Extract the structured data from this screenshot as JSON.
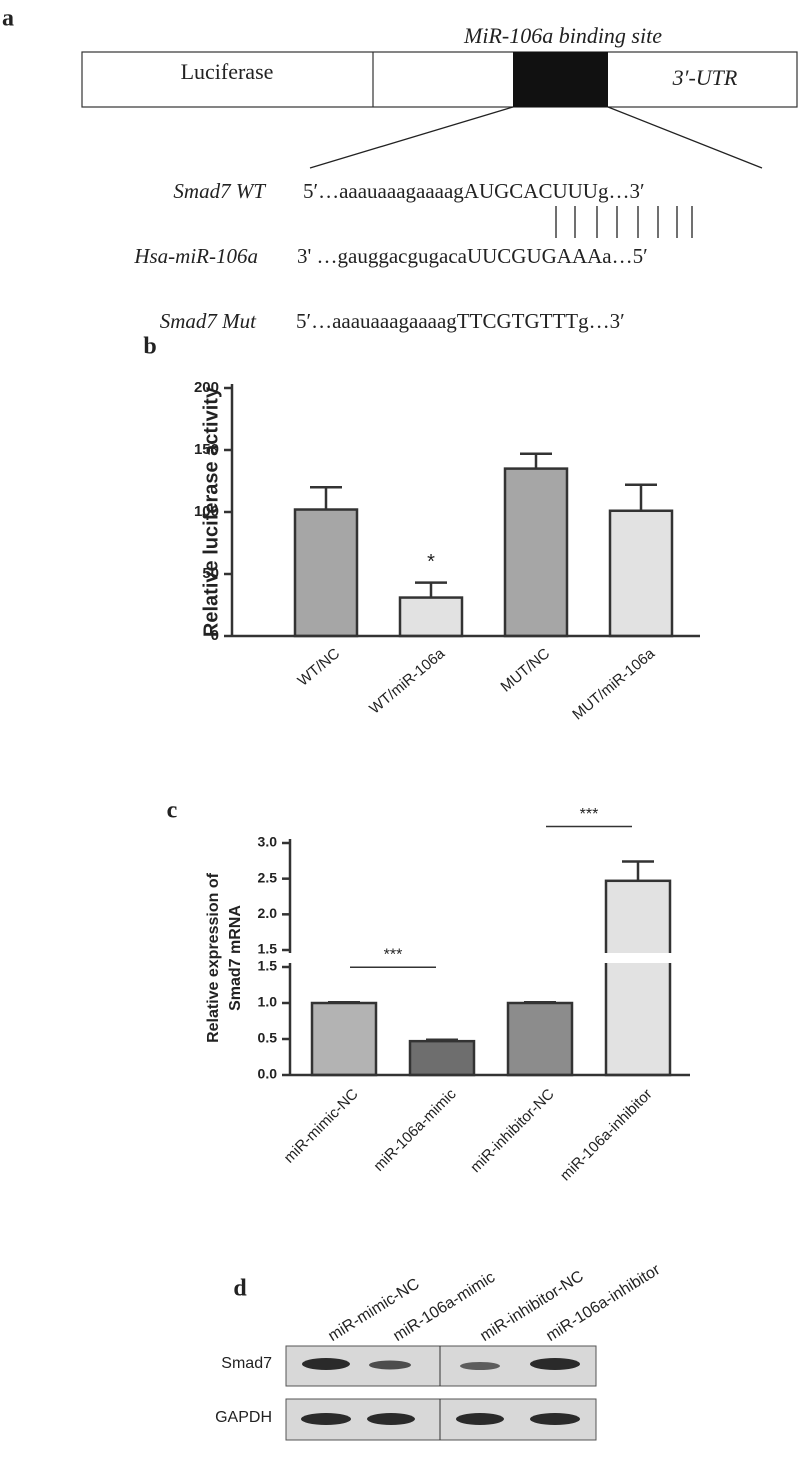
{
  "panel_a": {
    "label": "a",
    "luciferase": "Luciferase",
    "binding_site": "MiR-106a binding site",
    "utr": "3′-UTR",
    "rows": [
      {
        "name": "Smad7 WT",
        "sequence": "5′…aaauaaagaaaagAUGCACUUUg…3′"
      },
      {
        "name": "Hsa-miR-106a",
        "sequence": "3' …gauggacgugacaUUCGUGAAAa…5′"
      },
      {
        "name": "Smad7 Mut",
        "sequence": "5′…aaauaaagaaaagTTCGTGTTTg…3′"
      }
    ]
  },
  "chart_data": [
    {
      "type": "bar",
      "label": "b",
      "ylabel": [
        "Relative luciferase activity"
      ],
      "categories": [
        "WT/NC",
        "WT/miR-106a",
        "MUT/NC",
        "MUT/miR-106a"
      ],
      "values": [
        102,
        31,
        135,
        101
      ],
      "errors": [
        18,
        12,
        12,
        21
      ],
      "colors": [
        "#a6a6a6",
        "#e2e2e2",
        "#a6a6a6",
        "#e2e2e2"
      ],
      "ylim": [
        0,
        200
      ],
      "yticks": [
        0,
        50,
        100,
        150,
        200
      ],
      "annotations": [
        {
          "text": "*",
          "categories": [
            "WT/miR-106a"
          ]
        }
      ]
    },
    {
      "type": "bar",
      "label": "c",
      "ylabel": [
        "Relative expression of",
        "Smad7 mRNA"
      ],
      "categories": [
        "miR-mimic-NC",
        "miR-106a-mimic",
        "miR-inhibitor-NC",
        "miR-106a-inhibitor"
      ],
      "values": [
        1.0,
        0.47,
        1.0,
        2.47
      ],
      "errors": [
        0.01,
        0.02,
        0.01,
        0.27
      ],
      "colors": [
        "#b3b3b3",
        "#6e6e6e",
        "#8c8c8c",
        "#e2e2e2"
      ],
      "segments": [
        {
          "ylim": [
            0,
            1.5
          ],
          "yticks": [
            {
              "value": 0,
              "label": "0.0"
            },
            0.5,
            {
              "value": 1,
              "label": "1.0"
            },
            1.5
          ]
        },
        {
          "ylim": [
            1.5,
            3.0
          ],
          "yticks": [
            1.5,
            {
              "value": 2,
              "label": "2.0"
            },
            2.5,
            {
              "value": 3,
              "label": "3.0"
            }
          ]
        }
      ],
      "annotations": [
        {
          "text": "***",
          "categories": [
            "miR-mimic-NC",
            "miR-106a-mimic"
          ]
        },
        {
          "text": "***",
          "categories": [
            "miR-inhibitor-NC",
            "miR-106a-inhibitor"
          ]
        }
      ]
    }
  ],
  "panel_d": {
    "label": "d",
    "lanes": [
      "miR-mimic-NC",
      "miR-106a-mimic",
      "miR-inhibitor-NC",
      "miR-106a-inhibitor"
    ],
    "rows": [
      "Smad7",
      "GAPDH"
    ]
  }
}
